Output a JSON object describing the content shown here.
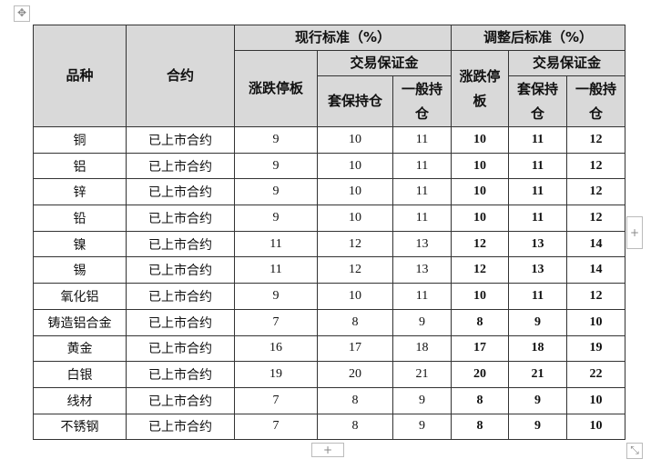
{
  "header": {
    "row1": [
      "品种",
      "合约",
      "现行标准（%）",
      "调整后标准（%）"
    ],
    "row2": [
      "涨跌停板",
      "交易保证金",
      "涨跌停板",
      "交易保证金"
    ],
    "row3": [
      "套保持仓",
      "一般持仓",
      "套保持仓",
      "一般持仓"
    ]
  },
  "table": {
    "rows": [
      [
        "铜",
        "已上市合约",
        9,
        10,
        11,
        10,
        11,
        12
      ],
      [
        "铝",
        "已上市合约",
        9,
        10,
        11,
        10,
        11,
        12
      ],
      [
        "锌",
        "已上市合约",
        9,
        10,
        11,
        10,
        11,
        12
      ],
      [
        "铅",
        "已上市合约",
        9,
        10,
        11,
        10,
        11,
        12
      ],
      [
        "镍",
        "已上市合约",
        11,
        12,
        13,
        12,
        13,
        14
      ],
      [
        "锡",
        "已上市合约",
        11,
        12,
        13,
        12,
        13,
        14
      ],
      [
        "氧化铝",
        "已上市合约",
        9,
        10,
        11,
        10,
        11,
        12
      ],
      [
        "铸造铝合金",
        "已上市合约",
        7,
        8,
        9,
        8,
        9,
        10
      ],
      [
        "黄金",
        "已上市合约",
        16,
        17,
        18,
        17,
        18,
        19
      ],
      [
        "白银",
        "已上市合约",
        19,
        20,
        21,
        20,
        21,
        22
      ],
      [
        "线材",
        "已上市合约",
        7,
        8,
        9,
        8,
        9,
        10
      ],
      [
        "不锈钢",
        "已上市合约",
        7,
        8,
        9,
        8,
        9,
        10
      ]
    ]
  }
}
